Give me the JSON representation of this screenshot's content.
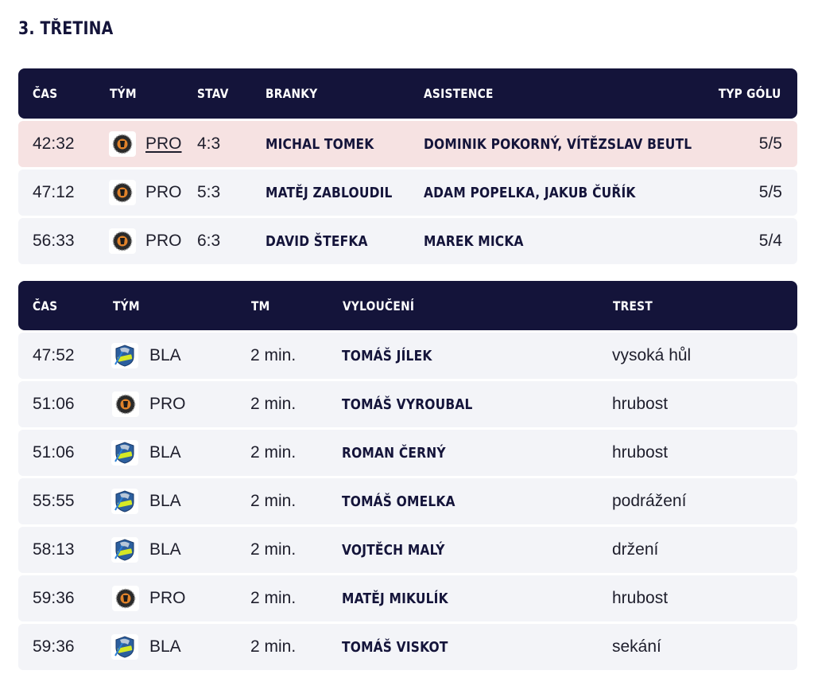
{
  "section_title": "3. TŘETINA",
  "goals": {
    "headers": {
      "time": "ČAS",
      "team": "TÝM",
      "score": "STAV",
      "scorer": "BRANKY",
      "assists": "ASISTENCE",
      "goal_type": "TYP GÓLU"
    },
    "rows": [
      {
        "time": "42:32",
        "team_logo": "pro-team-logo",
        "team": "PRO",
        "score": "4:3",
        "scorer": "MICHAL TOMEK",
        "assists": "DOMINIK POKORNÝ, VÍTĚZSLAV BEUTL",
        "goal_type": "5/5",
        "highlighted": true
      },
      {
        "time": "47:12",
        "team_logo": "pro-team-logo",
        "team": "PRO",
        "score": "5:3",
        "scorer": "MATĚJ ZABLOUDIL",
        "assists": "ADAM POPELKA, JAKUB ČUŘÍK",
        "goal_type": "5/5"
      },
      {
        "time": "56:33",
        "team_logo": "pro-team-logo",
        "team": "PRO",
        "score": "6:3",
        "scorer": "DAVID ŠTEFKA",
        "assists": "MAREK MICKA",
        "goal_type": "5/4"
      }
    ]
  },
  "penalties": {
    "headers": {
      "time": "ČAS",
      "team": "TÝM",
      "minutes": "TM",
      "player": "VYLOUČENÍ",
      "reason": "TREST"
    },
    "rows": [
      {
        "time": "47:52",
        "team_logo": "bla-team-logo",
        "team": "BLA",
        "minutes": "2 min.",
        "player": "TOMÁŠ JÍLEK",
        "reason": "vysoká hůl"
      },
      {
        "time": "51:06",
        "team_logo": "pro-team-logo",
        "team": "PRO",
        "minutes": "2 min.",
        "player": "TOMÁŠ VYROUBAL",
        "reason": "hrubost"
      },
      {
        "time": "51:06",
        "team_logo": "bla-team-logo",
        "team": "BLA",
        "minutes": "2 min.",
        "player": "ROMAN ČERNÝ",
        "reason": "hrubost"
      },
      {
        "time": "55:55",
        "team_logo": "bla-team-logo",
        "team": "BLA",
        "minutes": "2 min.",
        "player": "TOMÁŠ OMELKA",
        "reason": "podrážení"
      },
      {
        "time": "58:13",
        "team_logo": "bla-team-logo",
        "team": "BLA",
        "minutes": "2 min.",
        "player": "VOJTĚCH MALÝ",
        "reason": "držení"
      },
      {
        "time": "59:36",
        "team_logo": "pro-team-logo",
        "team": "PRO",
        "minutes": "2 min.",
        "player": "MATĚJ MIKULÍK",
        "reason": "hrubost"
      },
      {
        "time": "59:36",
        "team_logo": "bla-team-logo",
        "team": "BLA",
        "minutes": "2 min.",
        "player": "TOMÁŠ VISKOT",
        "reason": "sekání"
      }
    ]
  },
  "colors": {
    "header_bg": "#14143a",
    "row_bg": "#f3f4f8",
    "highlight_bg": "#f6e2e2"
  }
}
